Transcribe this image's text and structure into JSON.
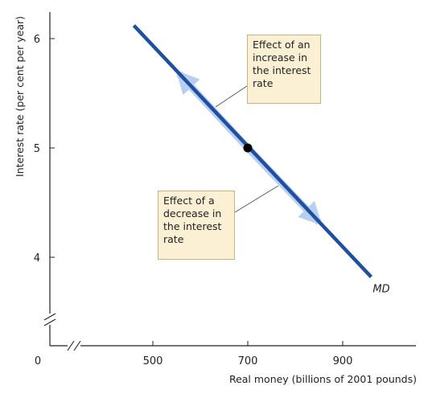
{
  "chart_data": {
    "type": "line",
    "xlabel": "Real money (billions of 2001 pounds)",
    "ylabel": "Interest rate (per cent per year)",
    "x_origin_label": "0",
    "x_ticks": [
      500,
      700,
      900
    ],
    "y_ticks": [
      4,
      5,
      6
    ],
    "xlim": [
      400,
      1000
    ],
    "ylim": [
      3.5,
      6.25
    ],
    "axis_breaks": [
      "x",
      "y"
    ],
    "grid": false,
    "series": [
      {
        "name": "MD",
        "x": [
          460,
          960
        ],
        "y": [
          6.12,
          3.82
        ],
        "color": "#1f4fa0"
      }
    ],
    "point": {
      "x": 700,
      "y": 5.0,
      "color": "#000000"
    },
    "movement_arrows": [
      {
        "from": [
          700,
          5.0
        ],
        "to": [
          555,
          5.68
        ],
        "color": "#b9cff0"
      },
      {
        "from": [
          700,
          5.0
        ],
        "to": [
          850,
          4.32
        ],
        "color": "#b9cff0"
      }
    ],
    "annotations": [
      {
        "lines": [
          "Effect of an",
          "increase in",
          "the interest",
          "rate"
        ]
      },
      {
        "lines": [
          "Effect of a",
          "decrease in",
          "the interest",
          "rate"
        ]
      }
    ]
  }
}
